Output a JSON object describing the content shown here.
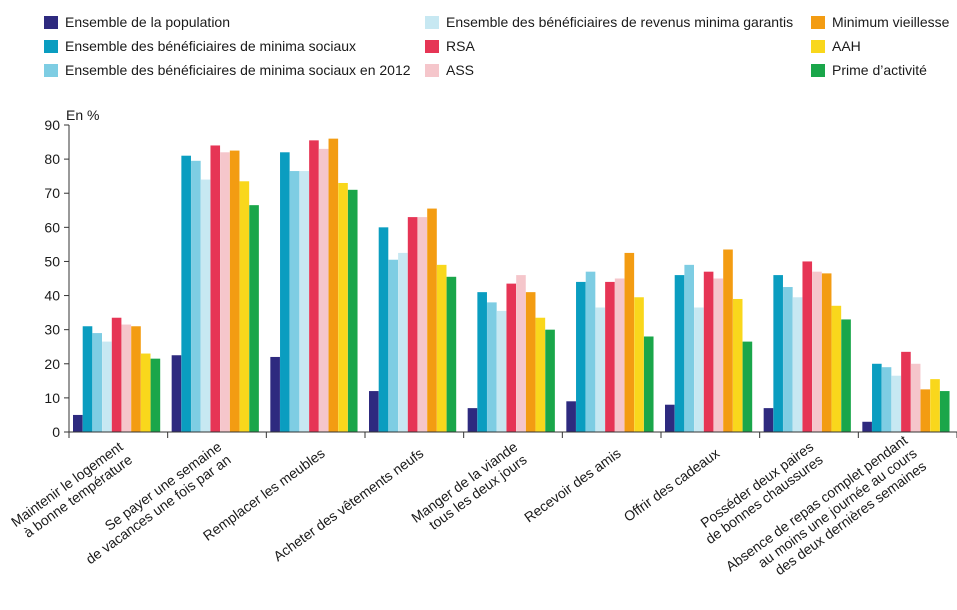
{
  "chart_data": {
    "type": "bar",
    "ylabel": "En %",
    "ylim": [
      0,
      90
    ],
    "yticks": [
      0,
      10,
      20,
      30,
      40,
      50,
      60,
      70,
      80,
      90
    ],
    "grid": false,
    "legend_position": "top",
    "categories": [
      [
        "Maintenir le logement",
        "à bonne température"
      ],
      [
        "Se payer une semaine",
        "de vacances une fois par an"
      ],
      [
        "Remplacer les meubles"
      ],
      [
        "Acheter des vêtements neufs"
      ],
      [
        "Manger de la viande",
        "tous les deux jours"
      ],
      [
        "Recevoir des amis"
      ],
      [
        "Offrir des cadeaux"
      ],
      [
        "Posséder deux paires",
        "de bonnes chaussures"
      ],
      [
        "Absence de repas complet pendant",
        "au moins une journée au cours",
        "des deux dernières semaines"
      ]
    ],
    "series": [
      {
        "name": "Ensemble de la population",
        "color": "#2e2a7f",
        "values": [
          5,
          22.5,
          22,
          12,
          7,
          9,
          8,
          7,
          3
        ]
      },
      {
        "name": "Ensemble des bénéficiaires de minima sociaux",
        "color": "#0a9dc0",
        "values": [
          31,
          81,
          82,
          60,
          41,
          44,
          46,
          46,
          20
        ]
      },
      {
        "name": "Ensemble des bénéficiaires de minima sociaux en 2012",
        "color": "#7ecde3",
        "values": [
          29,
          79.5,
          76.5,
          50.5,
          38,
          47,
          49,
          42.5,
          19
        ]
      },
      {
        "name": "Ensemble des bénéficiaires de revenus minima garantis",
        "color": "#c7e8f2",
        "values": [
          26.5,
          74,
          76.5,
          52.5,
          35.5,
          36.5,
          36.5,
          39.5,
          16.5
        ]
      },
      {
        "name": "RSA",
        "color": "#e63555",
        "values": [
          33.5,
          84,
          85.5,
          63,
          43.5,
          44,
          47,
          50,
          23.5
        ]
      },
      {
        "name": "ASS",
        "color": "#f5c6cb",
        "values": [
          31.5,
          82,
          83,
          63,
          46,
          45,
          45,
          47,
          20
        ]
      },
      {
        "name": "Minimum vieillesse",
        "color": "#f39c12",
        "values": [
          31,
          82.5,
          86,
          65.5,
          41,
          52.5,
          53.5,
          46.5,
          12.5
        ]
      },
      {
        "name": "AAH",
        "color": "#f9d71c",
        "values": [
          23,
          73.5,
          73,
          49,
          33.5,
          39.5,
          39,
          37,
          15.5
        ]
      },
      {
        "name": "Prime d’activité",
        "color": "#1aa64a",
        "values": [
          21.5,
          66.5,
          71,
          45.5,
          30,
          28,
          26.5,
          33,
          12
        ]
      }
    ]
  }
}
